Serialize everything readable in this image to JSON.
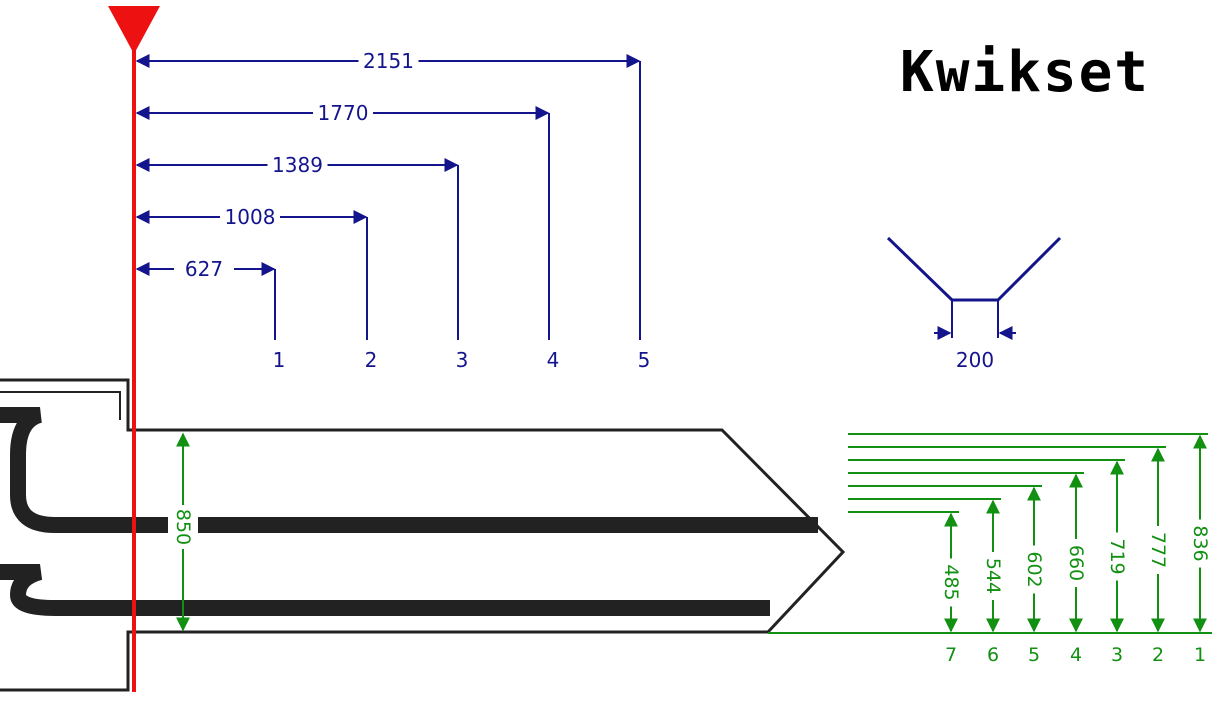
{
  "brand": "Kwikset",
  "colors": {
    "blue": "#14148c",
    "green": "#129012",
    "red": "#ee1111",
    "key_outline": "#222222"
  },
  "spacing": {
    "cuts": [
      {
        "number": "1",
        "distance": "627"
      },
      {
        "number": "2",
        "distance": "1008"
      },
      {
        "number": "3",
        "distance": "1389"
      },
      {
        "number": "4",
        "distance": "1770"
      },
      {
        "number": "5",
        "distance": "2151"
      }
    ]
  },
  "cut_profile": {
    "flat_width": "200"
  },
  "blade": {
    "height": "850"
  },
  "depths": [
    {
      "number": "1",
      "depth": "836"
    },
    {
      "number": "2",
      "depth": "777"
    },
    {
      "number": "3",
      "depth": "719"
    },
    {
      "number": "4",
      "depth": "660"
    },
    {
      "number": "5",
      "depth": "602"
    },
    {
      "number": "6",
      "depth": "544"
    },
    {
      "number": "7",
      "depth": "485"
    }
  ]
}
